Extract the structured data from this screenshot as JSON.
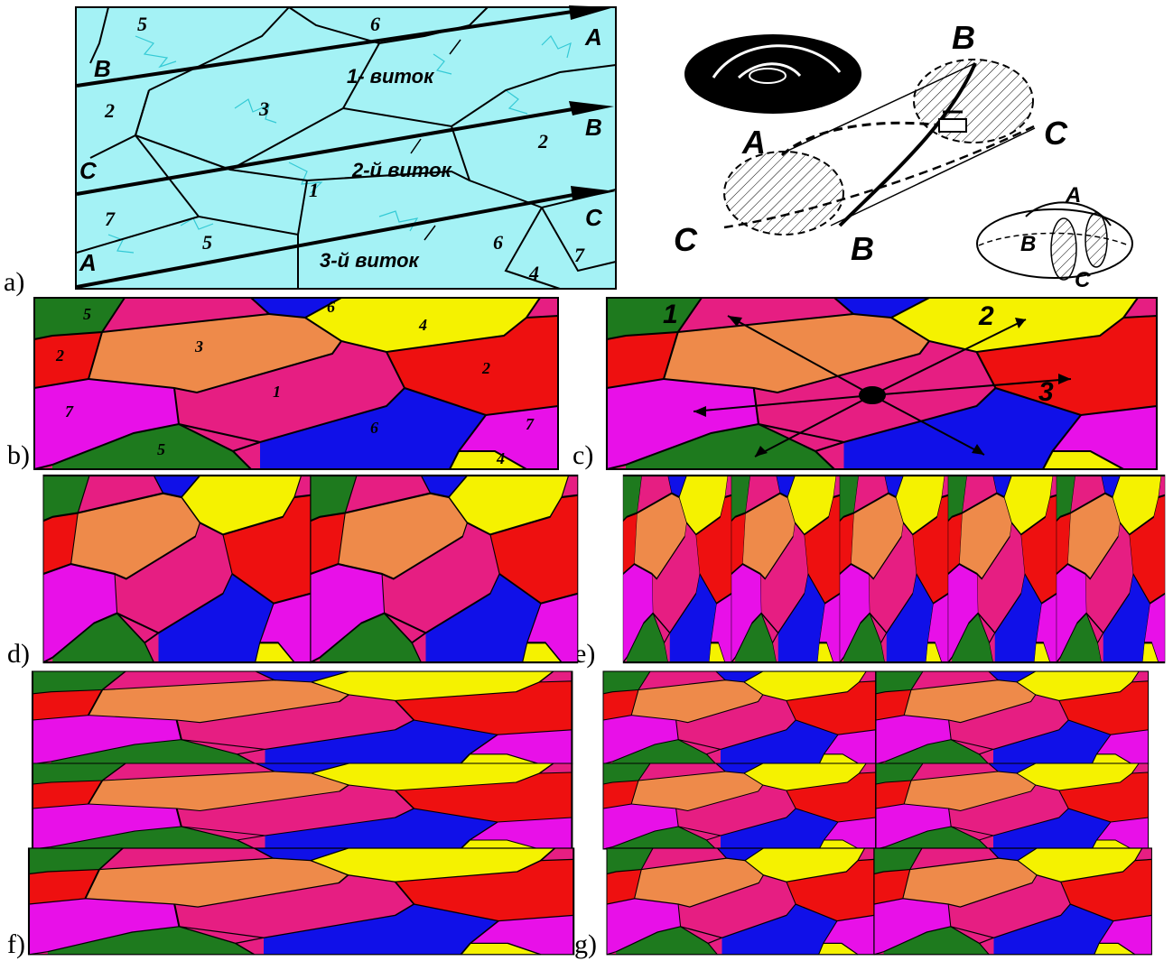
{
  "figure": {
    "panel_labels": [
      "a)",
      "b)",
      "c)",
      "d)",
      "e)",
      "f)",
      "g)"
    ]
  },
  "panel_a": {
    "strip_labels": {
      "left": [
        "B",
        "C",
        "A"
      ],
      "right": [
        "A",
        "B",
        "C"
      ]
    },
    "turns": [
      "1- виток",
      "2-й виток",
      "3-й виток"
    ],
    "region_numbers": [
      "5",
      "6",
      "2",
      "3",
      "2",
      "1",
      "7",
      "5",
      "6",
      "7",
      "4"
    ],
    "torus_labels": {
      "top": "B",
      "left_upper": "A",
      "right": "C",
      "left_lower": "C",
      "bottom": "B",
      "small_torus": [
        "A",
        "B",
        "C"
      ]
    }
  },
  "tile": {
    "regions": [
      {
        "n": "5",
        "color": "#1e7a1e"
      },
      {
        "n": "6",
        "color": "#1010e8"
      },
      {
        "n": "2",
        "color": "#ee1010"
      },
      {
        "n": "3",
        "color": "#ee8a4a"
      },
      {
        "n": "4",
        "color": "#f5f200"
      },
      {
        "n": "1",
        "color": "#e61e82"
      },
      {
        "n": "7",
        "color": "#e810e8"
      }
    ]
  },
  "panel_c": {
    "arrow_labels": [
      "1",
      "2",
      "3"
    ]
  },
  "colors": {
    "cyan_bg": "#a4f2f5",
    "cyan_line": "#27c5d2"
  }
}
